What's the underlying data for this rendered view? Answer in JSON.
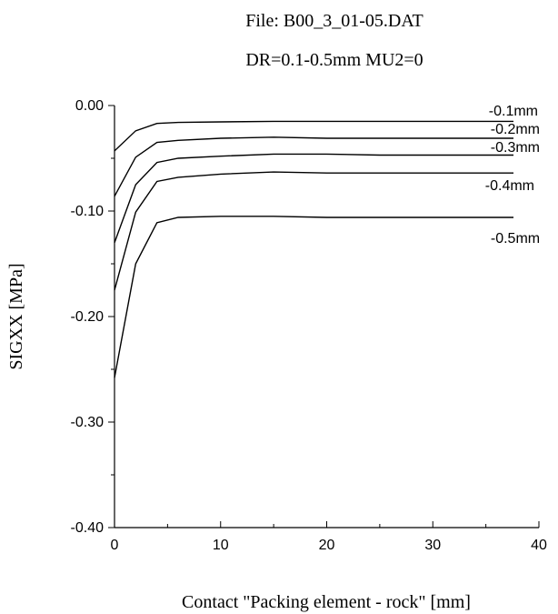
{
  "chart_data": {
    "type": "line",
    "title": "File: B00_3_01-05.DAT",
    "subtitle": "DR=0.1-0.5mm  MU2=0",
    "xlabel": "Contact \"Packing element - rock\" [mm]",
    "ylabel": "SIGXX [MPa]",
    "xlim": [
      0,
      40
    ],
    "ylim": [
      -0.4,
      0.0
    ],
    "x_ticks": [
      0,
      10,
      20,
      30,
      40
    ],
    "x_tick_labels": [
      "0",
      "10",
      "20",
      "30",
      "40"
    ],
    "y_ticks": [
      0.0,
      -0.1,
      -0.2,
      -0.3,
      -0.4
    ],
    "y_tick_labels": [
      "0.00",
      "-0.10",
      "-0.20",
      "-0.30",
      "-0.40"
    ],
    "grid": false,
    "series": [
      {
        "name": "-0.1mm",
        "x": [
          0,
          2,
          4,
          6,
          10,
          15,
          20,
          25,
          30,
          35,
          37.6
        ],
        "y": [
          -0.043,
          -0.024,
          -0.017,
          -0.016,
          -0.0155,
          -0.015,
          -0.015,
          -0.015,
          -0.015,
          -0.015,
          -0.015
        ]
      },
      {
        "name": "-0.2mm",
        "x": [
          0,
          2,
          4,
          6,
          10,
          15,
          20,
          25,
          30,
          35,
          37.6
        ],
        "y": [
          -0.086,
          -0.049,
          -0.035,
          -0.033,
          -0.031,
          -0.03,
          -0.031,
          -0.031,
          -0.031,
          -0.031,
          -0.031
        ]
      },
      {
        "name": "-0.3mm",
        "x": [
          0,
          2,
          4,
          6,
          10,
          15,
          20,
          25,
          30,
          35,
          37.6
        ],
        "y": [
          -0.13,
          -0.075,
          -0.054,
          -0.05,
          -0.048,
          -0.046,
          -0.046,
          -0.047,
          -0.047,
          -0.047,
          -0.047
        ]
      },
      {
        "name": "-0.4mm",
        "x": [
          0,
          2,
          4,
          6,
          10,
          15,
          20,
          25,
          30,
          35,
          37.6
        ],
        "y": [
          -0.175,
          -0.101,
          -0.072,
          -0.068,
          -0.065,
          -0.063,
          -0.064,
          -0.064,
          -0.064,
          -0.064,
          -0.064
        ]
      },
      {
        "name": "-0.5mm",
        "x": [
          0,
          2,
          4,
          6,
          10,
          15,
          20,
          25,
          30,
          35,
          37.6
        ],
        "y": [
          -0.258,
          -0.15,
          -0.111,
          -0.106,
          -0.105,
          -0.105,
          -0.106,
          -0.106,
          -0.106,
          -0.106,
          -0.106
        ]
      }
    ]
  }
}
